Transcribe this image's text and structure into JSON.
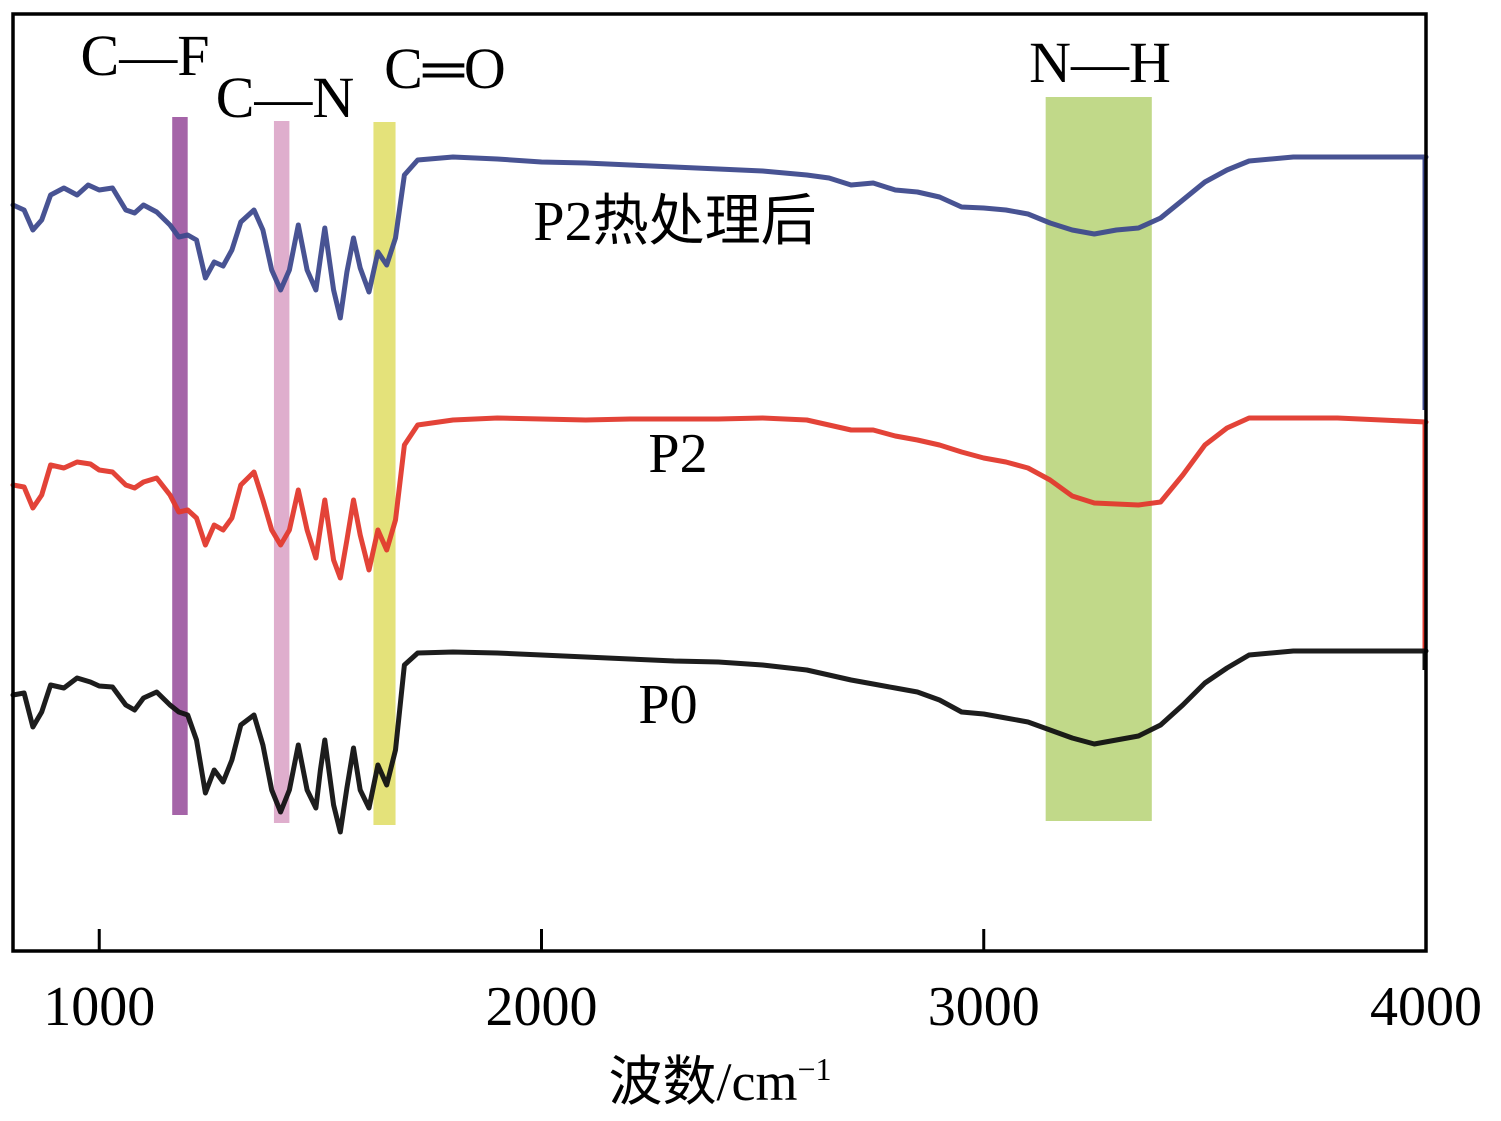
{
  "chart_data": {
    "type": "line",
    "title": "",
    "xlabel": "波数/cm",
    "xlabel_superscript": "−1",
    "ylabel": "",
    "xlim": [
      805,
      4000
    ],
    "xticks": [
      1000,
      2000,
      3000,
      4000
    ],
    "grid": false,
    "legend": "none (series labelled inline)",
    "bands": [
      {
        "name": "C—F",
        "x": [
          1165,
          1200
        ],
        "color": "#a564a8"
      },
      {
        "name": "C—N",
        "x": [
          1395,
          1430
        ],
        "color": "#dfaecd"
      },
      {
        "name": "C═O",
        "x": [
          1620,
          1670
        ],
        "color": "#e4e27a"
      },
      {
        "name": "N—H",
        "x": [
          3140,
          3380
        ],
        "color": "#c1d989"
      }
    ],
    "series": [
      {
        "name": "P2热处理后",
        "color": "#3e4a8d",
        "points": [
          [
            805,
            205
          ],
          [
            830,
            210
          ],
          [
            850,
            230
          ],
          [
            870,
            220
          ],
          [
            890,
            195
          ],
          [
            920,
            188
          ],
          [
            950,
            195
          ],
          [
            975,
            185
          ],
          [
            1000,
            190
          ],
          [
            1030,
            188
          ],
          [
            1060,
            210
          ],
          [
            1080,
            213
          ],
          [
            1100,
            205
          ],
          [
            1130,
            212
          ],
          [
            1160,
            225
          ],
          [
            1180,
            237
          ],
          [
            1200,
            235
          ],
          [
            1220,
            240
          ],
          [
            1240,
            278
          ],
          [
            1260,
            262
          ],
          [
            1280,
            266
          ],
          [
            1300,
            250
          ],
          [
            1320,
            222
          ],
          [
            1350,
            210
          ],
          [
            1370,
            230
          ],
          [
            1390,
            270
          ],
          [
            1410,
            290
          ],
          [
            1430,
            270
          ],
          [
            1450,
            225
          ],
          [
            1470,
            270
          ],
          [
            1490,
            290
          ],
          [
            1500,
            258
          ],
          [
            1510,
            228
          ],
          [
            1530,
            290
          ],
          [
            1545,
            318
          ],
          [
            1560,
            272
          ],
          [
            1575,
            238
          ],
          [
            1590,
            268
          ],
          [
            1610,
            292
          ],
          [
            1630,
            252
          ],
          [
            1650,
            265
          ],
          [
            1670,
            238
          ],
          [
            1690,
            175
          ],
          [
            1720,
            160
          ],
          [
            1800,
            157
          ],
          [
            1900,
            159
          ],
          [
            2000,
            162
          ],
          [
            2100,
            163
          ],
          [
            2200,
            165
          ],
          [
            2300,
            167
          ],
          [
            2400,
            169
          ],
          [
            2500,
            171
          ],
          [
            2600,
            175
          ],
          [
            2650,
            178
          ],
          [
            2700,
            185
          ],
          [
            2750,
            183
          ],
          [
            2800,
            190
          ],
          [
            2850,
            192
          ],
          [
            2900,
            197
          ],
          [
            2950,
            207
          ],
          [
            3000,
            208
          ],
          [
            3050,
            210
          ],
          [
            3100,
            214
          ],
          [
            3150,
            223
          ],
          [
            3200,
            230
          ],
          [
            3250,
            234
          ],
          [
            3300,
            230
          ],
          [
            3350,
            228
          ],
          [
            3400,
            218
          ],
          [
            3450,
            200
          ],
          [
            3500,
            182
          ],
          [
            3550,
            170
          ],
          [
            3600,
            161
          ],
          [
            3700,
            157
          ],
          [
            3800,
            157
          ],
          [
            3900,
            157
          ],
          [
            4000,
            157
          ]
        ]
      },
      {
        "name": "P2",
        "color": "#e1392d",
        "points": [
          [
            805,
            485
          ],
          [
            830,
            487
          ],
          [
            850,
            508
          ],
          [
            870,
            495
          ],
          [
            890,
            465
          ],
          [
            920,
            468
          ],
          [
            950,
            462
          ],
          [
            980,
            464
          ],
          [
            1000,
            470
          ],
          [
            1030,
            472
          ],
          [
            1060,
            485
          ],
          [
            1080,
            488
          ],
          [
            1100,
            482
          ],
          [
            1130,
            478
          ],
          [
            1160,
            495
          ],
          [
            1180,
            512
          ],
          [
            1200,
            510
          ],
          [
            1220,
            518
          ],
          [
            1240,
            545
          ],
          [
            1260,
            525
          ],
          [
            1280,
            530
          ],
          [
            1300,
            518
          ],
          [
            1320,
            485
          ],
          [
            1350,
            472
          ],
          [
            1370,
            500
          ],
          [
            1390,
            530
          ],
          [
            1410,
            545
          ],
          [
            1430,
            530
          ],
          [
            1450,
            490
          ],
          [
            1470,
            530
          ],
          [
            1490,
            558
          ],
          [
            1500,
            528
          ],
          [
            1510,
            500
          ],
          [
            1530,
            560
          ],
          [
            1545,
            578
          ],
          [
            1560,
            540
          ],
          [
            1575,
            500
          ],
          [
            1590,
            535
          ],
          [
            1610,
            570
          ],
          [
            1630,
            530
          ],
          [
            1650,
            550
          ],
          [
            1670,
            520
          ],
          [
            1690,
            445
          ],
          [
            1720,
            425
          ],
          [
            1800,
            420
          ],
          [
            1900,
            418
          ],
          [
            2000,
            419
          ],
          [
            2100,
            420
          ],
          [
            2200,
            419
          ],
          [
            2300,
            419
          ],
          [
            2400,
            419
          ],
          [
            2500,
            418
          ],
          [
            2600,
            420
          ],
          [
            2650,
            425
          ],
          [
            2700,
            430
          ],
          [
            2750,
            430
          ],
          [
            2800,
            436
          ],
          [
            2850,
            440
          ],
          [
            2900,
            445
          ],
          [
            2950,
            452
          ],
          [
            3000,
            458
          ],
          [
            3050,
            462
          ],
          [
            3100,
            468
          ],
          [
            3150,
            480
          ],
          [
            3200,
            496
          ],
          [
            3250,
            503
          ],
          [
            3300,
            504
          ],
          [
            3350,
            505
          ],
          [
            3400,
            502
          ],
          [
            3450,
            475
          ],
          [
            3500,
            445
          ],
          [
            3550,
            428
          ],
          [
            3600,
            418
          ],
          [
            3700,
            418
          ],
          [
            3800,
            418
          ],
          [
            3900,
            420
          ],
          [
            4000,
            422
          ]
        ]
      },
      {
        "name": "P0",
        "color": "#111111",
        "points": [
          [
            805,
            695
          ],
          [
            830,
            693
          ],
          [
            850,
            727
          ],
          [
            870,
            712
          ],
          [
            890,
            685
          ],
          [
            920,
            688
          ],
          [
            950,
            678
          ],
          [
            980,
            682
          ],
          [
            1000,
            686
          ],
          [
            1030,
            687
          ],
          [
            1060,
            705
          ],
          [
            1080,
            710
          ],
          [
            1100,
            698
          ],
          [
            1130,
            692
          ],
          [
            1160,
            705
          ],
          [
            1180,
            712
          ],
          [
            1200,
            715
          ],
          [
            1220,
            740
          ],
          [
            1240,
            793
          ],
          [
            1260,
            770
          ],
          [
            1280,
            782
          ],
          [
            1300,
            760
          ],
          [
            1320,
            725
          ],
          [
            1350,
            715
          ],
          [
            1370,
            745
          ],
          [
            1390,
            790
          ],
          [
            1410,
            812
          ],
          [
            1430,
            790
          ],
          [
            1450,
            745
          ],
          [
            1470,
            790
          ],
          [
            1490,
            808
          ],
          [
            1500,
            770
          ],
          [
            1510,
            740
          ],
          [
            1530,
            805
          ],
          [
            1545,
            832
          ],
          [
            1560,
            788
          ],
          [
            1575,
            748
          ],
          [
            1590,
            790
          ],
          [
            1610,
            808
          ],
          [
            1630,
            765
          ],
          [
            1650,
            785
          ],
          [
            1670,
            750
          ],
          [
            1690,
            665
          ],
          [
            1720,
            653
          ],
          [
            1800,
            652
          ],
          [
            1900,
            653
          ],
          [
            2000,
            655
          ],
          [
            2100,
            657
          ],
          [
            2200,
            659
          ],
          [
            2300,
            661
          ],
          [
            2400,
            662
          ],
          [
            2500,
            665
          ],
          [
            2600,
            670
          ],
          [
            2650,
            675
          ],
          [
            2700,
            680
          ],
          [
            2750,
            684
          ],
          [
            2800,
            688
          ],
          [
            2850,
            692
          ],
          [
            2900,
            700
          ],
          [
            2950,
            712
          ],
          [
            3000,
            714
          ],
          [
            3050,
            718
          ],
          [
            3100,
            722
          ],
          [
            3150,
            730
          ],
          [
            3200,
            738
          ],
          [
            3250,
            744
          ],
          [
            3300,
            740
          ],
          [
            3350,
            736
          ],
          [
            3400,
            725
          ],
          [
            3450,
            705
          ],
          [
            3500,
            683
          ],
          [
            3550,
            668
          ],
          [
            3600,
            655
          ],
          [
            3700,
            651
          ],
          [
            3800,
            651
          ],
          [
            3900,
            651
          ],
          [
            4000,
            651
          ]
        ]
      }
    ]
  }
}
